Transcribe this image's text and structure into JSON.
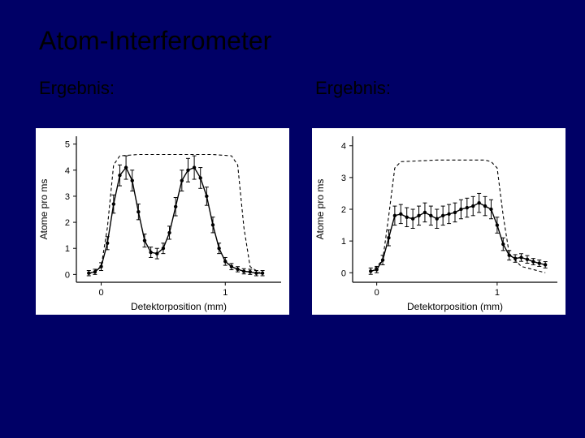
{
  "slide": {
    "title": "Atom-Interferometer",
    "left_label": "Ergebnis:",
    "right_label": "Ergebnis:",
    "bg": "#000066",
    "title_color": "#000000",
    "label_color": "#000000",
    "title_fontsize": 32,
    "label_fontsize": 22
  },
  "chart_left": {
    "type": "line+scatter",
    "xlabel": "Detektorposition (mm)",
    "ylabel": "Atome pro ms",
    "xlim": [
      -0.2,
      1.45
    ],
    "ylim": [
      -0.3,
      5.3
    ],
    "xticks": [
      0,
      1
    ],
    "yticks": [
      0,
      1,
      2,
      3,
      4,
      5
    ],
    "axis_fontsize": 12,
    "tick_fontsize": 11,
    "bg": "#ffffff",
    "axis_color": "#000000",
    "fit_color": "#000000",
    "dashed_color": "#000000",
    "dashed_dash": "4 3",
    "marker_color": "#000000",
    "marker_size": 2.2,
    "line_width": 1.4,
    "data_x": [
      -0.1,
      -0.05,
      0.0,
      0.05,
      0.1,
      0.15,
      0.2,
      0.25,
      0.3,
      0.35,
      0.4,
      0.45,
      0.5,
      0.55,
      0.6,
      0.65,
      0.7,
      0.75,
      0.8,
      0.85,
      0.9,
      0.95,
      1.0,
      1.05,
      1.1,
      1.15,
      1.2,
      1.25,
      1.3
    ],
    "data_y": [
      0.05,
      0.1,
      0.3,
      1.2,
      2.7,
      3.8,
      4.1,
      3.6,
      2.4,
      1.3,
      0.85,
      0.8,
      1.0,
      1.6,
      2.6,
      3.6,
      4.0,
      4.1,
      3.7,
      3.0,
      1.9,
      1.0,
      0.5,
      0.3,
      0.2,
      0.12,
      0.1,
      0.05,
      0.05
    ],
    "err_y": [
      0.1,
      0.1,
      0.15,
      0.25,
      0.35,
      0.4,
      0.45,
      0.4,
      0.3,
      0.25,
      0.2,
      0.2,
      0.2,
      0.25,
      0.35,
      0.4,
      0.45,
      0.45,
      0.4,
      0.35,
      0.3,
      0.2,
      0.15,
      0.12,
      0.1,
      0.1,
      0.1,
      0.1,
      0.1
    ],
    "dashed_x": [
      -0.1,
      0.0,
      0.05,
      0.1,
      0.15,
      0.3,
      0.6,
      0.9,
      1.05,
      1.1,
      1.15,
      1.2,
      1.3
    ],
    "dashed_y": [
      0.0,
      0.3,
      1.8,
      4.2,
      4.55,
      4.6,
      4.6,
      4.6,
      4.55,
      4.2,
      1.8,
      0.3,
      0.0
    ]
  },
  "chart_right": {
    "type": "line+scatter",
    "xlabel": "Detektorposition (mm)",
    "ylabel": "Atome pro ms",
    "xlim": [
      -0.2,
      1.5
    ],
    "ylim": [
      -0.3,
      4.3
    ],
    "xticks": [
      0,
      1
    ],
    "yticks": [
      0,
      1,
      2,
      3,
      4
    ],
    "axis_fontsize": 12,
    "tick_fontsize": 11,
    "bg": "#ffffff",
    "axis_color": "#000000",
    "fit_color": "#000000",
    "dashed_color": "#000000",
    "dashed_dash": "4 3",
    "marker_color": "#000000",
    "marker_size": 2.2,
    "line_width": 1.4,
    "data_x": [
      -0.05,
      0.0,
      0.05,
      0.1,
      0.15,
      0.2,
      0.25,
      0.3,
      0.35,
      0.4,
      0.45,
      0.5,
      0.55,
      0.6,
      0.65,
      0.7,
      0.75,
      0.8,
      0.85,
      0.9,
      0.95,
      1.0,
      1.05,
      1.1,
      1.15,
      1.2,
      1.25,
      1.3,
      1.35,
      1.4
    ],
    "data_y": [
      0.05,
      0.1,
      0.4,
      1.1,
      1.8,
      1.85,
      1.75,
      1.7,
      1.8,
      1.9,
      1.8,
      1.7,
      1.8,
      1.85,
      1.9,
      2.0,
      2.05,
      2.1,
      2.2,
      2.1,
      2.0,
      1.5,
      0.9,
      0.55,
      0.45,
      0.48,
      0.42,
      0.35,
      0.3,
      0.25
    ],
    "err_y": [
      0.1,
      0.1,
      0.15,
      0.25,
      0.3,
      0.3,
      0.3,
      0.3,
      0.3,
      0.3,
      0.3,
      0.3,
      0.3,
      0.3,
      0.3,
      0.3,
      0.3,
      0.3,
      0.3,
      0.3,
      0.3,
      0.25,
      0.2,
      0.15,
      0.12,
      0.12,
      0.12,
      0.1,
      0.1,
      0.1
    ],
    "dashed_x": [
      -0.05,
      0.05,
      0.1,
      0.15,
      0.2,
      0.5,
      0.9,
      0.95,
      1.0,
      1.05,
      1.1,
      1.2,
      1.4
    ],
    "dashed_y": [
      0.0,
      0.4,
      1.8,
      3.3,
      3.5,
      3.55,
      3.55,
      3.5,
      3.3,
      1.8,
      0.6,
      0.2,
      0.0
    ]
  }
}
